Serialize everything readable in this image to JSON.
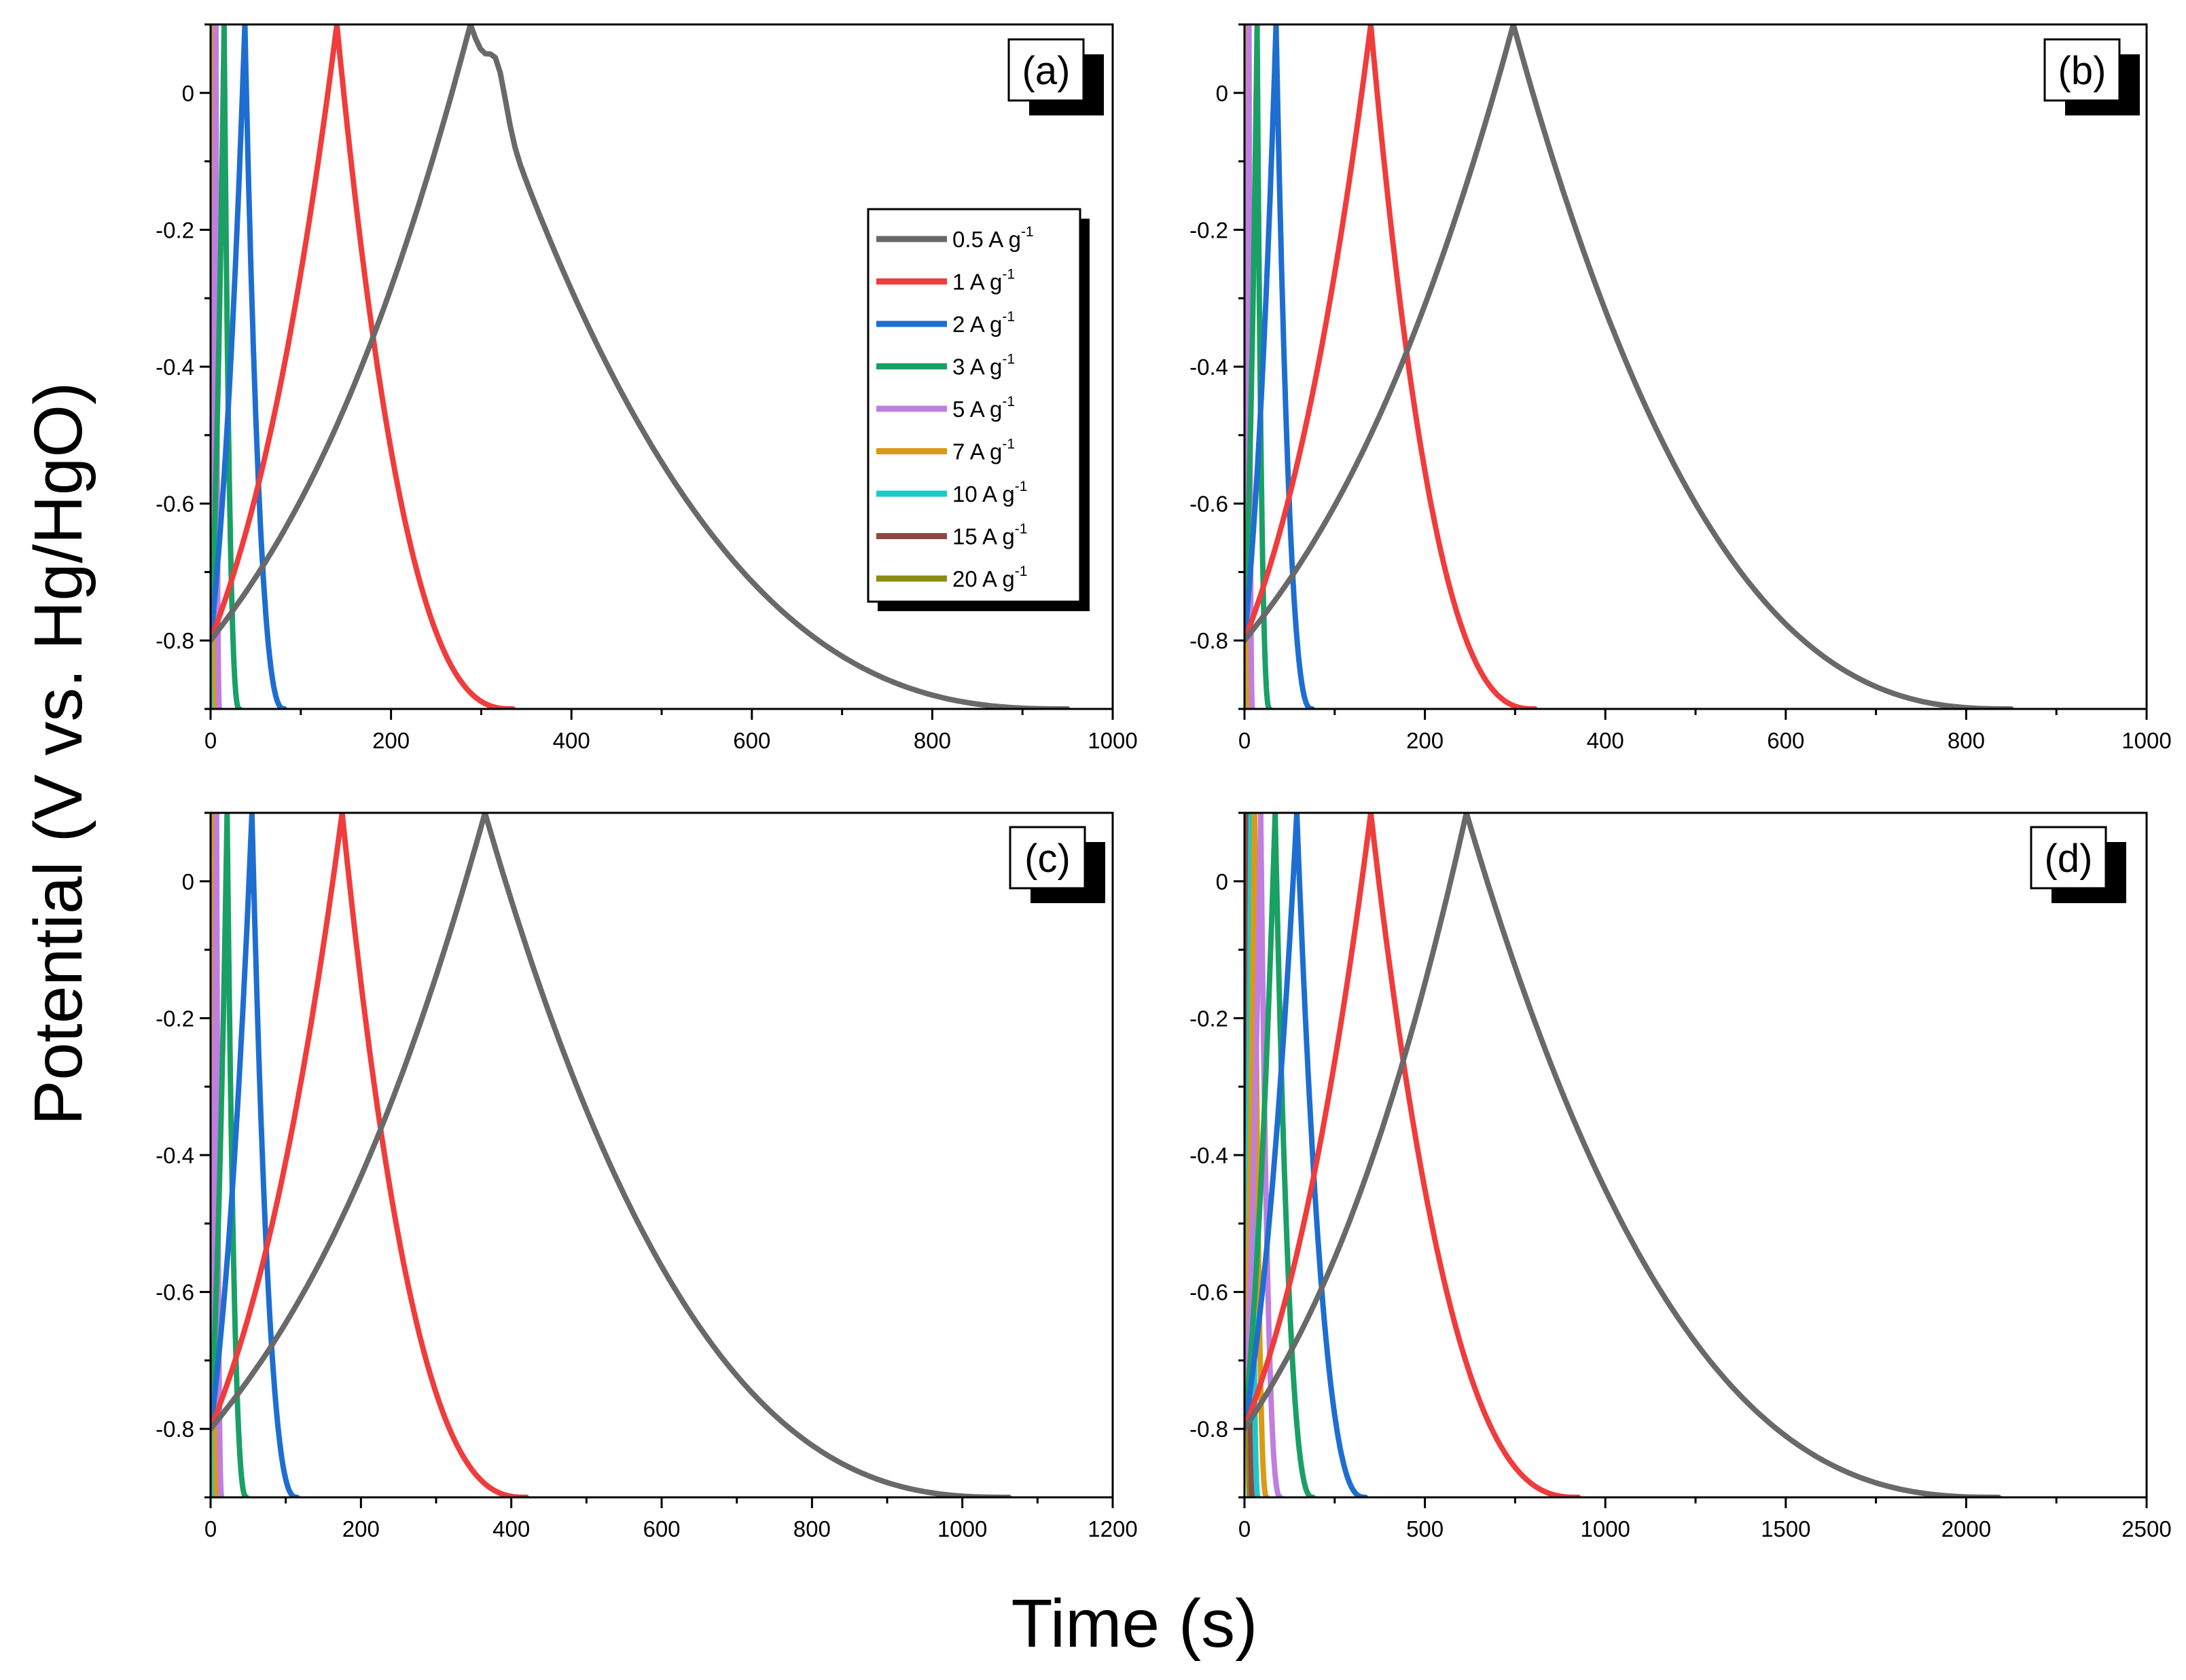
{
  "figure": {
    "xlabel": "Time (s)",
    "ylabel": "Potential (V vs. Hg/HgO)"
  },
  "colors": {
    "0.5": "#696969",
    "1": "#f03c3c",
    "2": "#1e6ed2",
    "3": "#1aa064",
    "5": "#c07ee0",
    "7": "#d99a14",
    "10": "#1ec8c8",
    "15": "#8c4a46",
    "20": "#8c8c10"
  },
  "legend": {
    "unit": "A g",
    "exponent": "-1",
    "items": [
      {
        "key": "0.5",
        "label": "0.5"
      },
      {
        "key": "1",
        "label": "1"
      },
      {
        "key": "2",
        "label": "2"
      },
      {
        "key": "3",
        "label": "3"
      },
      {
        "key": "5",
        "label": "5"
      },
      {
        "key": "7",
        "label": "7"
      },
      {
        "key": "10",
        "label": "10"
      },
      {
        "key": "15",
        "label": "15"
      },
      {
        "key": "20",
        "label": "20"
      }
    ]
  },
  "chart_data": [
    {
      "type": "line",
      "panel": "(a)",
      "xlim": [
        0,
        1000
      ],
      "ylim": [
        -0.9,
        0.1
      ],
      "xticks": [
        0,
        200,
        400,
        600,
        800,
        1000
      ],
      "yticks": [
        0,
        -0.2,
        -0.4,
        -0.6,
        -0.8
      ],
      "series": [
        {
          "name": "0.5 A g-1",
          "key": "0.5",
          "charge_end": 288,
          "discharge_end": 950,
          "knee": true
        },
        {
          "name": "1 A g-1",
          "key": "1",
          "charge_end": 140,
          "discharge_end": 335
        },
        {
          "name": "2 A g-1",
          "key": "2",
          "charge_end": 38,
          "discharge_end": 82
        },
        {
          "name": "3 A g-1",
          "key": "3",
          "charge_end": 15,
          "discharge_end": 32
        },
        {
          "name": "5 A g-1",
          "key": "5",
          "charge_end": 6,
          "discharge_end": 10
        },
        {
          "name": "7 A g-1",
          "key": "7",
          "charge_end": 4,
          "discharge_end": 6
        },
        {
          "name": "10 A g-1",
          "key": "10",
          "charge_end": 3,
          "discharge_end": 4
        },
        {
          "name": "15 A g-1",
          "key": "15",
          "charge_end": 2,
          "discharge_end": 3
        },
        {
          "name": "20 A g-1",
          "key": "20",
          "charge_end": 1.5,
          "discharge_end": 2
        }
      ]
    },
    {
      "type": "line",
      "panel": "(b)",
      "xlim": [
        0,
        1000
      ],
      "ylim": [
        -0.9,
        0.1
      ],
      "xticks": [
        0,
        200,
        400,
        600,
        800,
        1000
      ],
      "yticks": [
        0,
        -0.2,
        -0.4,
        -0.6,
        -0.8
      ],
      "series": [
        {
          "name": "0.5 A g-1",
          "key": "0.5",
          "charge_end": 298,
          "discharge_end": 850
        },
        {
          "name": "1 A g-1",
          "key": "1",
          "charge_end": 140,
          "discharge_end": 322
        },
        {
          "name": "2 A g-1",
          "key": "2",
          "charge_end": 35,
          "discharge_end": 75
        },
        {
          "name": "3 A g-1",
          "key": "3",
          "charge_end": 14,
          "discharge_end": 28
        },
        {
          "name": "5 A g-1",
          "key": "5",
          "charge_end": 5,
          "discharge_end": 9
        },
        {
          "name": "7 A g-1",
          "key": "7",
          "charge_end": 3,
          "discharge_end": 5
        },
        {
          "name": "10 A g-1",
          "key": "10",
          "charge_end": 2.5,
          "discharge_end": 3.5
        },
        {
          "name": "15 A g-1",
          "key": "15",
          "charge_end": 2,
          "discharge_end": 2.5
        },
        {
          "name": "20 A g-1",
          "key": "20",
          "charge_end": 1.5,
          "discharge_end": 2
        }
      ]
    },
    {
      "type": "line",
      "panel": "(c)",
      "xlim": [
        0,
        1200
      ],
      "ylim": [
        -0.9,
        0.1
      ],
      "xticks": [
        0,
        200,
        400,
        600,
        800,
        1000,
        1200
      ],
      "yticks": [
        0,
        -0.2,
        -0.4,
        -0.6,
        -0.8
      ],
      "series": [
        {
          "name": "0.5 A g-1",
          "key": "0.5",
          "charge_end": 365,
          "discharge_end": 1062
        },
        {
          "name": "1 A g-1",
          "key": "1",
          "charge_end": 175,
          "discharge_end": 420
        },
        {
          "name": "2 A g-1",
          "key": "2",
          "charge_end": 55,
          "discharge_end": 115
        },
        {
          "name": "3 A g-1",
          "key": "3",
          "charge_end": 22,
          "discharge_end": 48
        },
        {
          "name": "5 A g-1",
          "key": "5",
          "charge_end": 8,
          "discharge_end": 15
        },
        {
          "name": "7 A g-1",
          "key": "7",
          "charge_end": 5,
          "discharge_end": 8
        },
        {
          "name": "10 A g-1",
          "key": "10",
          "charge_end": 3,
          "discharge_end": 5
        },
        {
          "name": "15 A g-1",
          "key": "15",
          "charge_end": 2.5,
          "discharge_end": 3.5
        },
        {
          "name": "20 A g-1",
          "key": "20",
          "charge_end": 2,
          "discharge_end": 2.5
        }
      ]
    },
    {
      "type": "line",
      "panel": "(d)",
      "xlim": [
        0,
        2500
      ],
      "ylim": [
        -0.9,
        0.1
      ],
      "xticks": [
        0,
        500,
        1000,
        1500,
        2000,
        2500
      ],
      "yticks": [
        0,
        -0.2,
        -0.4,
        -0.6,
        -0.8
      ],
      "series": [
        {
          "name": "0.5 A g-1",
          "key": "0.5",
          "charge_end": 615,
          "discharge_end": 2090
        },
        {
          "name": "1 A g-1",
          "key": "1",
          "charge_end": 350,
          "discharge_end": 925
        },
        {
          "name": "2 A g-1",
          "key": "2",
          "charge_end": 145,
          "discharge_end": 335
        },
        {
          "name": "3 A g-1",
          "key": "3",
          "charge_end": 85,
          "discharge_end": 190
        },
        {
          "name": "5 A g-1",
          "key": "5",
          "charge_end": 45,
          "discharge_end": 100
        },
        {
          "name": "7 A g-1",
          "key": "7",
          "charge_end": 28,
          "discharge_end": 62
        },
        {
          "name": "10 A g-1",
          "key": "10",
          "charge_end": 18,
          "discharge_end": 38
        },
        {
          "name": "15 A g-1",
          "key": "15",
          "charge_end": 10,
          "discharge_end": 22
        },
        {
          "name": "20 A g-1",
          "key": "20",
          "charge_end": 6,
          "discharge_end": 14
        }
      ]
    }
  ]
}
